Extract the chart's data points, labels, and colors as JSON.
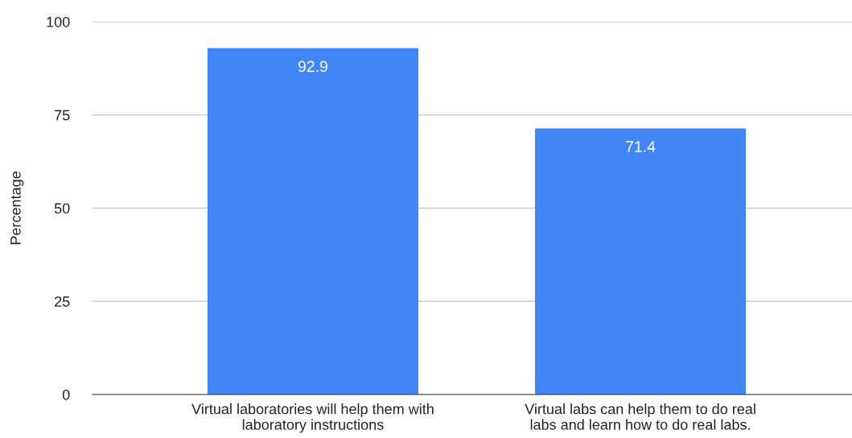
{
  "chart_data": {
    "type": "bar",
    "ylabel": "Percentage",
    "categories": [
      "Virtual laboratories will help them with laboratory instructions",
      "Virtual labs can help them to do real labs and learn how to do real labs."
    ],
    "values": [
      92.9,
      71.4
    ],
    "color": "#4285f4",
    "data_labels": true,
    "ylim": [
      0,
      100
    ],
    "yticks": [
      0,
      25,
      50,
      75,
      100
    ],
    "grid": "y"
  }
}
